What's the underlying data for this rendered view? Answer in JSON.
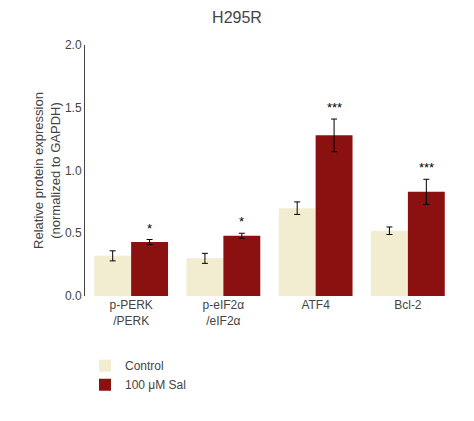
{
  "chart_data": {
    "type": "bar",
    "title": "H295R",
    "ylabel": "Relative protein expression\n(normalized to GAPDH)",
    "categories": [
      "p-PERK\n/PERK",
      "p-eIF2α\n/eIF2α",
      "ATF4",
      "Bcl-2"
    ],
    "series": [
      {
        "name": "Control",
        "color": "#F2EDD0",
        "values": [
          0.32,
          0.3,
          0.7,
          0.52
        ],
        "errors": [
          0.04,
          0.04,
          0.05,
          0.03
        ]
      },
      {
        "name": "100 μM Sal",
        "color": "#8B1010",
        "values": [
          0.43,
          0.48,
          1.28,
          0.83
        ],
        "errors": [
          0.02,
          0.02,
          0.13,
          0.1
        ],
        "annotations": [
          "*",
          "*",
          "***",
          "***"
        ]
      }
    ],
    "ylim": [
      0,
      2.0
    ],
    "yticks": [
      {
        "value": 0.0,
        "label": "0.0"
      },
      0.5,
      {
        "value": 1.0,
        "label": "1.0"
      },
      1.5,
      {
        "value": 2.0,
        "label": "2.0"
      }
    ],
    "grid": false,
    "legend": "lower left"
  }
}
